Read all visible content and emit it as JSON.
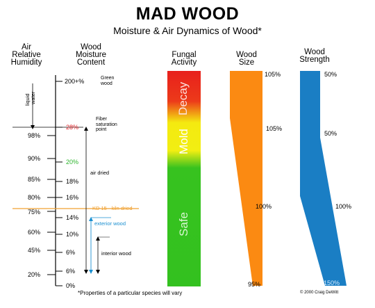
{
  "title": "MAD WOOD",
  "subtitle": "Moisture & Air Dynamics of Wood*",
  "headers": {
    "air_rh_1": "Air",
    "air_rh_2": "Relative",
    "air_rh_3": "Humidity",
    "wmc_1": "Wood",
    "wmc_2": "Moisture",
    "wmc_3": "Content",
    "fungal_1": "Fungal",
    "fungal_2": "Activity",
    "size_1": "Wood",
    "size_2": "Size",
    "strength_1": "Wood",
    "strength_2": "Strength"
  },
  "liquid_water_1": "liquid",
  "liquid_water_2": "water",
  "rh_labels": [
    "98%",
    "90%",
    "85%",
    "80%",
    "75%",
    "60%",
    "45%",
    "20%"
  ],
  "mc_labels": [
    "200+%",
    "28%",
    "20%",
    "18%",
    "16%",
    "14%",
    "10%",
    "6%",
    "6%",
    "0%"
  ],
  "mc_colors": {
    "fiber": "#e0262b",
    "twenty": "#2fb52f",
    "kd": "#f0a030",
    "exterior": "#1a8fd0"
  },
  "annotations": {
    "green_wood_1": "Green",
    "green_wood_2": "wood",
    "fiber_1": "Fiber",
    "fiber_2": "saturation",
    "fiber_3": "point",
    "air_dried": "air dried",
    "kd": "KD 15 - kiln dried",
    "exterior": "exterior wood",
    "interior": "interior wood"
  },
  "fungal_zones": {
    "decay": "Decay",
    "mold": "Mold",
    "safe": "Safe"
  },
  "fungal_colors": {
    "decay": "#e8201c",
    "mold": "#f4ea10",
    "safe": "#33c11f"
  },
  "size_labels": [
    "105%",
    "105%",
    "100%",
    "95%"
  ],
  "strength_labels": [
    "50%",
    "50%",
    "100%",
    "150%"
  ],
  "size_color": "#fb8a12",
  "strength_color": "#1a7ec4",
  "footnote": "*Properties of a particular species will vary",
  "copyright": "© 2000 Craig DeWitt"
}
